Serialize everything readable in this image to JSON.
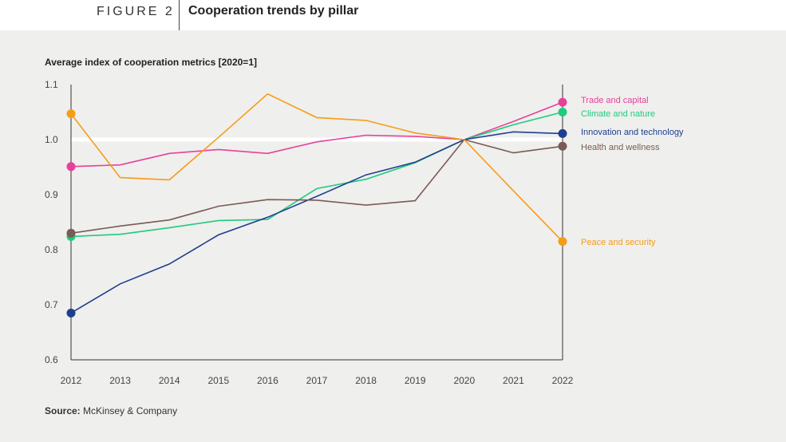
{
  "figure": {
    "label": "FIGURE 2",
    "title": "Cooperation trends by pillar"
  },
  "source": {
    "prefix": "Source:",
    "text": "McKinsey & Company"
  },
  "chart_data": {
    "type": "line",
    "ylabel": "Average index of cooperation metrics [2020=1]",
    "x": [
      2012,
      2013,
      2014,
      2015,
      2016,
      2017,
      2018,
      2019,
      2020,
      2021,
      2022
    ],
    "ylim": [
      0.6,
      1.1
    ],
    "yticks": [
      "0.6",
      "0.7",
      "0.8",
      "0.9",
      "1.0",
      "1.1"
    ],
    "reference_line": 1.0,
    "grid": false,
    "legend": "right-end labels",
    "series": [
      {
        "name": "Trade and capital",
        "color": "#e8409a",
        "values": [
          0.951,
          0.954,
          0.975,
          0.982,
          0.975,
          0.996,
          1.008,
          1.006,
          1.0,
          1.033,
          1.068
        ]
      },
      {
        "name": "Climate and nature",
        "color": "#1fcb7e",
        "values": [
          0.824,
          0.828,
          0.84,
          0.853,
          0.855,
          0.911,
          0.928,
          0.958,
          1.0,
          1.027,
          1.05
        ]
      },
      {
        "name": "Innovation and technology",
        "color": "#1f3e8f",
        "values": [
          0.685,
          0.738,
          0.774,
          0.827,
          0.859,
          0.897,
          0.936,
          0.959,
          1.0,
          1.014,
          1.011
        ]
      },
      {
        "name": "Health and wellness",
        "color": "#7a5a55",
        "values": [
          0.83,
          0.843,
          0.854,
          0.879,
          0.891,
          0.89,
          0.881,
          0.889,
          1.0,
          0.976,
          0.988
        ]
      },
      {
        "name": "Peace and security",
        "color": "#f69c18",
        "values": [
          1.047,
          0.931,
          0.927,
          1.004,
          1.083,
          1.04,
          1.035,
          1.012,
          1.0,
          0.907,
          0.815
        ]
      }
    ]
  }
}
